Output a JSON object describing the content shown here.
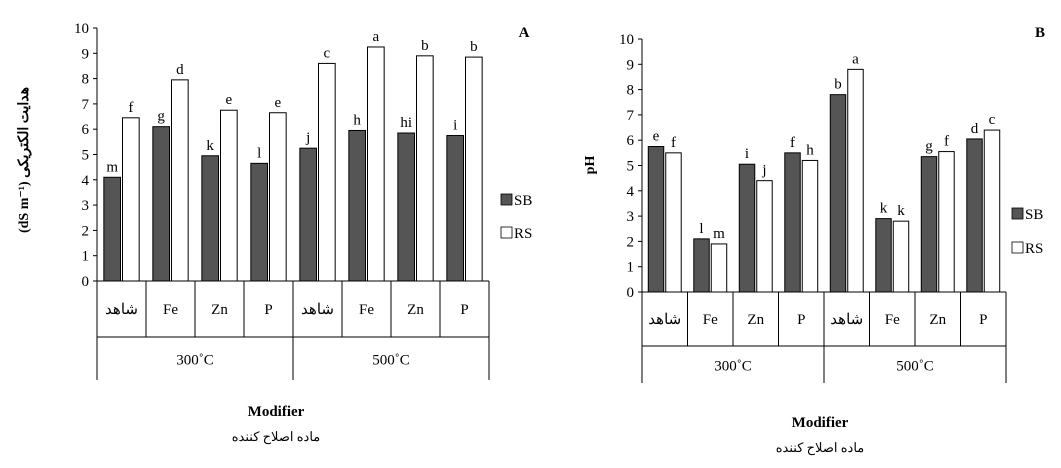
{
  "chart_data": [
    {
      "type": "bar",
      "panel_label": "A",
      "ylabel": "(dS m⁻¹) هدایت الکتریکی",
      "xlabel": "Modifier",
      "xlabel_sub": "ماده اصلاح کننده",
      "ylim": [
        0,
        10
      ],
      "yticks": [
        "0",
        "1",
        "2",
        "3",
        "4",
        "5",
        "6",
        "7",
        "8",
        "9",
        "10"
      ],
      "categories": [
        "شاهد",
        "Fe",
        "Zn",
        "P",
        "شاهد",
        "Fe",
        "Zn",
        "P"
      ],
      "groups": [
        {
          "label": "300˚C",
          "span": 4
        },
        {
          "label": "500˚C",
          "span": 4
        }
      ],
      "legend": [
        "SB",
        "RS"
      ],
      "legend_position": "right",
      "series": [
        {
          "name": "SB",
          "color": "#555555",
          "values": [
            4.1,
            6.1,
            4.95,
            4.65,
            5.25,
            5.95,
            5.85,
            5.75
          ],
          "letters": [
            "m",
            "g",
            "k",
            "l",
            "j",
            "h",
            "hi",
            "i"
          ]
        },
        {
          "name": "RS",
          "color": "#ffffff",
          "values": [
            6.45,
            7.95,
            6.75,
            6.65,
            8.6,
            9.25,
            8.9,
            8.85
          ],
          "letters": [
            "f",
            "d",
            "e",
            "e",
            "c",
            "a",
            "b",
            "b"
          ]
        }
      ]
    },
    {
      "type": "bar",
      "panel_label": "B",
      "ylabel": "pH",
      "xlabel": "Modifier",
      "xlabel_sub": "ماده اصلاح کننده",
      "ylim": [
        0,
        10
      ],
      "yticks": [
        "0",
        "1",
        "2",
        "3",
        "4",
        "5",
        "6",
        "7",
        "8",
        "9",
        "10"
      ],
      "categories": [
        "شاهد",
        "Fe",
        "Zn",
        "P",
        "شاهد",
        "Fe",
        "Zn",
        "P"
      ],
      "groups": [
        {
          "label": "300˚C",
          "span": 4
        },
        {
          "label": "500˚C",
          "span": 4
        }
      ],
      "legend": [
        "SB",
        "RS"
      ],
      "legend_position": "right",
      "series": [
        {
          "name": "SB",
          "color": "#555555",
          "values": [
            5.75,
            2.1,
            5.05,
            5.5,
            7.8,
            2.9,
            5.35,
            6.05
          ],
          "letters": [
            "e",
            "l",
            "i",
            "f",
            "b",
            "k",
            "g",
            "d"
          ]
        },
        {
          "name": "RS",
          "color": "#ffffff",
          "values": [
            5.5,
            1.9,
            4.4,
            5.2,
            8.8,
            2.8,
            5.55,
            6.4
          ],
          "letters": [
            "f",
            "m",
            "j",
            "h",
            "a",
            "k",
            "f",
            "c"
          ]
        }
      ]
    }
  ]
}
